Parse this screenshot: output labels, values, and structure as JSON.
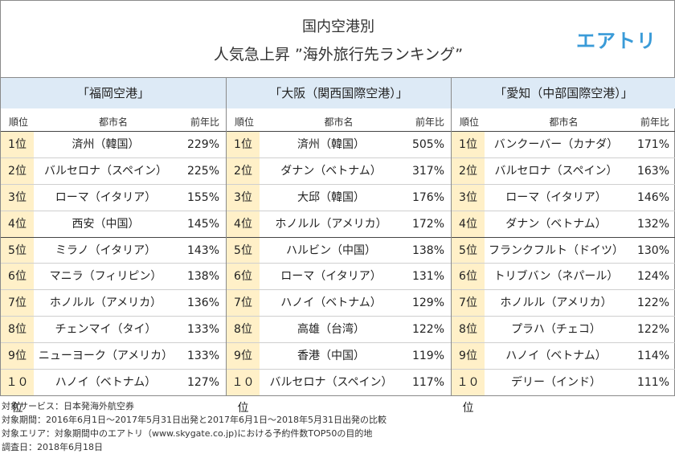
{
  "header": {
    "title_line1": "国内空港別",
    "title_line2": "人気急上昇 ”海外旅行先ランキング”",
    "logo": "エアトリ"
  },
  "columns": {
    "rank": "順位",
    "city": "都市名",
    "pct": "前年比"
  },
  "panels": [
    {
      "title": "「福岡空港」",
      "rows": [
        {
          "rank": "1位",
          "city": "済州（韓国）",
          "pct": "229%"
        },
        {
          "rank": "2位",
          "city": "バルセロナ（スペイン）",
          "pct": "225%"
        },
        {
          "rank": "3位",
          "city": "ローマ（イタリア）",
          "pct": "155%"
        },
        {
          "rank": "4位",
          "city": "西安（中国）",
          "pct": "145%"
        },
        {
          "rank": "5位",
          "city": "ミラノ（イタリア）",
          "pct": "143%"
        },
        {
          "rank": "6位",
          "city": "マニラ（フィリピン）",
          "pct": "138%"
        },
        {
          "rank": "7位",
          "city": "ホノルル（アメリカ）",
          "pct": "136%"
        },
        {
          "rank": "8位",
          "city": "チェンマイ（タイ）",
          "pct": "133%"
        },
        {
          "rank": "9位",
          "city": "ニューヨーク（アメリカ）",
          "pct": "133%"
        },
        {
          "rank": "１０位",
          "city": "ハノイ（ベトナム）",
          "pct": "127%"
        }
      ]
    },
    {
      "title": "「大阪（関西国際空港）」",
      "rows": [
        {
          "rank": "1位",
          "city": "済州（韓国）",
          "pct": "505%"
        },
        {
          "rank": "2位",
          "city": "ダナン（ベトナム）",
          "pct": "317%"
        },
        {
          "rank": "3位",
          "city": "大邱（韓国）",
          "pct": "176%"
        },
        {
          "rank": "4位",
          "city": "ホノルル（アメリカ）",
          "pct": "172%"
        },
        {
          "rank": "5位",
          "city": "ハルビン（中国）",
          "pct": "138%"
        },
        {
          "rank": "6位",
          "city": "ローマ（イタリア）",
          "pct": "131%"
        },
        {
          "rank": "7位",
          "city": "ハノイ（ベトナム）",
          "pct": "129%"
        },
        {
          "rank": "8位",
          "city": "高雄（台湾）",
          "pct": "122%"
        },
        {
          "rank": "9位",
          "city": "香港（中国）",
          "pct": "119%"
        },
        {
          "rank": "１０位",
          "city": "バルセロナ（スペイン）",
          "pct": "117%"
        }
      ]
    },
    {
      "title": "「愛知（中部国際空港）」",
      "rows": [
        {
          "rank": "1位",
          "city": "バンクーバー（カナダ）",
          "pct": "171%"
        },
        {
          "rank": "2位",
          "city": "バルセロナ（スペイン）",
          "pct": "163%"
        },
        {
          "rank": "3位",
          "city": "ローマ（イタリア）",
          "pct": "146%"
        },
        {
          "rank": "4位",
          "city": "ダナン（ベトナム）",
          "pct": "132%"
        },
        {
          "rank": "5位",
          "city": "フランクフルト（ドイツ）",
          "pct": "130%"
        },
        {
          "rank": "6位",
          "city": "トリブバン（ネパール）",
          "pct": "124%"
        },
        {
          "rank": "7位",
          "city": "ホノルル（アメリカ）",
          "pct": "122%"
        },
        {
          "rank": "8位",
          "city": "プラハ（チェコ）",
          "pct": "122%"
        },
        {
          "rank": "9位",
          "city": "ハノイ（ベトナム）",
          "pct": "114%"
        },
        {
          "rank": "１０位",
          "city": "デリー（インド）",
          "pct": "111%"
        }
      ]
    }
  ],
  "notes": [
    "対象サービス：日本発海外航空券",
    "対象期間：2016年6月1日～2017年5月31日出発と2017年6月1日～2018年5月31日出発の比較",
    "対象エリア：対象期間中のエアトリ（www.skygate.co.jp)における予約件数TOP50の目的地",
    "調査日：2018年6月18日"
  ]
}
